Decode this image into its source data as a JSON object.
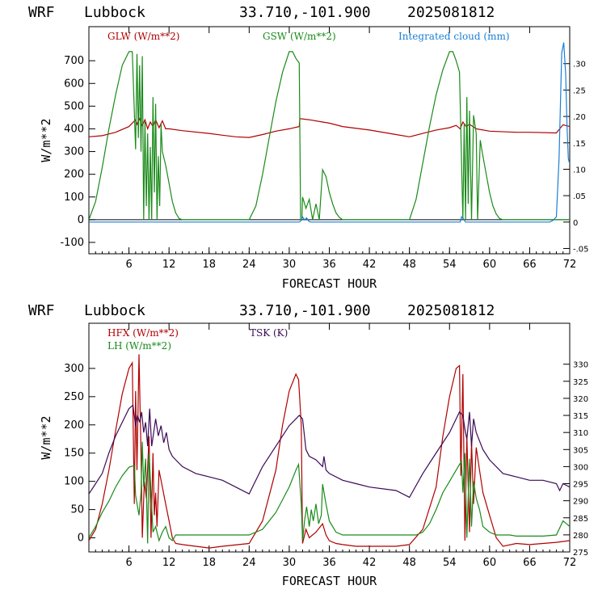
{
  "chart_data": [
    {
      "type": "line",
      "header": {
        "model": "WRF",
        "location": "Lubbock",
        "coords": "33.710,-101.900",
        "run": "2025081812"
      },
      "xlabel": "FORECAST HOUR",
      "ylabel": "W/m**2",
      "xlim": [
        0,
        72
      ],
      "ylim": [
        -150,
        850
      ],
      "y2lim": [
        -0.06,
        0.37
      ],
      "xticks": [
        6,
        12,
        18,
        24,
        30,
        36,
        42,
        48,
        54,
        60,
        66,
        72
      ],
      "yticks": [
        -100,
        0,
        100,
        200,
        300,
        400,
        500,
        600,
        700
      ],
      "y2ticks": [
        -0.05,
        0,
        0.05,
        0.1,
        0.15,
        0.2,
        0.25,
        0.3
      ],
      "y2ticklabels": [
        "-.05",
        "0",
        ".05",
        ".10",
        ".15",
        ".20",
        ".25",
        ".30"
      ],
      "zero_line": true,
      "series": [
        {
          "name": "GLW (W/m**2)",
          "color": "#b00000",
          "axis": "left",
          "x": [
            0,
            2,
            4,
            6,
            7,
            7.2,
            7.6,
            8,
            8.4,
            8.8,
            9.2,
            9.6,
            10,
            10.5,
            11,
            11.5,
            12,
            14,
            18,
            20,
            22,
            24,
            26,
            28,
            30,
            31.5,
            31.6,
            33,
            35,
            36,
            38,
            42,
            46,
            48,
            50,
            52,
            54,
            55,
            55.6,
            56,
            56.5,
            57,
            58,
            60,
            64,
            66,
            70,
            71,
            72
          ],
          "y": [
            365,
            370,
            385,
            410,
            440,
            420,
            445,
            415,
            440,
            400,
            430,
            410,
            440,
            405,
            435,
            400,
            400,
            392,
            380,
            372,
            365,
            362,
            375,
            390,
            400,
            410,
            445,
            440,
            430,
            425,
            410,
            395,
            375,
            365,
            380,
            395,
            405,
            415,
            400,
            430,
            410,
            420,
            400,
            390,
            385,
            385,
            382,
            418,
            410
          ]
        },
        {
          "name": "GSW (W/m**2)",
          "color": "#1a8a1a",
          "axis": "left",
          "x": [
            0,
            1,
            2,
            3,
            4,
            5,
            6,
            6.5,
            7,
            7.2,
            7.4,
            7.6,
            7.8,
            8,
            8.2,
            8.4,
            8.6,
            8.8,
            9,
            9.2,
            9.4,
            9.6,
            9.8,
            10,
            10.2,
            10.4,
            10.6,
            10.8,
            11,
            11.5,
            12,
            12.5,
            13,
            13.5,
            14,
            24,
            25,
            26,
            27,
            28,
            29,
            30,
            30.5,
            31,
            31.5,
            31.7,
            31.9,
            32,
            32.5,
            33,
            33.5,
            34,
            34.5,
            35,
            35.5,
            36,
            36.5,
            37,
            37.5,
            38,
            48,
            49,
            50,
            51,
            52,
            53,
            54,
            54.5,
            55,
            55.5,
            56,
            56.2,
            56.4,
            56.6,
            56.8,
            57,
            57.3,
            57.6,
            58,
            58.2,
            58.6,
            59,
            59.5,
            60,
            60.5,
            61,
            61.5,
            62,
            72
          ],
          "y": [
            0,
            80,
            230,
            400,
            550,
            680,
            740,
            740,
            310,
            730,
            360,
            680,
            300,
            720,
            0,
            430,
            60,
            380,
            0,
            320,
            0,
            540,
            120,
            510,
            0,
            280,
            60,
            420,
            300,
            240,
            160,
            80,
            30,
            5,
            0,
            0,
            60,
            200,
            360,
            520,
            650,
            740,
            740,
            710,
            690,
            0,
            0,
            100,
            50,
            90,
            0,
            70,
            0,
            220,
            190,
            120,
            70,
            30,
            10,
            0,
            0,
            90,
            250,
            410,
            550,
            660,
            740,
            740,
            700,
            650,
            0,
            420,
            0,
            540,
            70,
            480,
            0,
            460,
            380,
            0,
            350,
            280,
            200,
            120,
            60,
            25,
            5,
            0,
            0
          ]
        },
        {
          "name": "Integrated cloud (mm)",
          "color": "#1a7fd6",
          "axis": "right",
          "x": [
            0,
            31.5,
            31.8,
            32,
            32.3,
            32.6,
            32.9,
            33.2,
            34,
            55.6,
            55.8,
            56,
            56.2,
            56.4,
            69,
            69.5,
            70,
            70.4,
            70.8,
            71.1,
            71.4,
            71.6,
            71.8,
            72
          ],
          "y": [
            0,
            0,
            0.003,
            0.01,
            0.004,
            0.008,
            0.002,
            0,
            0,
            0,
            0.01,
            0.008,
            0.004,
            0,
            0,
            0.003,
            0.01,
            0.12,
            0.32,
            0.34,
            0.28,
            0.18,
            0.12,
            0.11
          ]
        }
      ]
    },
    {
      "type": "line",
      "header": {
        "model": "WRF",
        "location": "Lubbock",
        "coords": "33.710,-101.900",
        "run": "2025081812"
      },
      "xlabel": "FORECAST HOUR",
      "ylabel": "W/m**2",
      "xlim": [
        0,
        72
      ],
      "ylim": [
        -25,
        380
      ],
      "y2lim": [
        275,
        342
      ],
      "xticks": [
        6,
        12,
        18,
        24,
        30,
        36,
        42,
        48,
        54,
        60,
        66,
        72
      ],
      "yticks": [
        0,
        50,
        100,
        150,
        200,
        250,
        300
      ],
      "y2ticks": [
        275,
        280,
        285,
        290,
        295,
        300,
        305,
        310,
        315,
        320,
        325,
        330
      ],
      "y2ticklabels": [
        "275",
        "280",
        "285",
        "290",
        "295",
        "300",
        "305",
        "310",
        "315",
        "320",
        "325",
        "330"
      ],
      "zero_line": false,
      "series": [
        {
          "name": "HFX (W/m**2)",
          "color": "#b00000",
          "axis": "left",
          "x": [
            0,
            1,
            2,
            3,
            4,
            5,
            6,
            6.5,
            6.8,
            7,
            7.2,
            7.5,
            7.8,
            8,
            8.3,
            8.6,
            9,
            9.3,
            9.6,
            9.8,
            10,
            10.2,
            10.5,
            11,
            11.5,
            12,
            12.5,
            13,
            14,
            16,
            18,
            20,
            24,
            26,
            28,
            29,
            30,
            31,
            31.4,
            31.8,
            32,
            32.5,
            33,
            34,
            35,
            35.5,
            36,
            37,
            38,
            40,
            46,
            48,
            50,
            52,
            53,
            54,
            55,
            55.5,
            55.7,
            56,
            56.3,
            56.6,
            57,
            57.3,
            57.6,
            58,
            58.5,
            59,
            60,
            61,
            62,
            64,
            66,
            68,
            70,
            72
          ],
          "y": [
            -5,
            15,
            60,
            120,
            190,
            255,
            300,
            310,
            60,
            260,
            120,
            325,
            150,
            0,
            100,
            70,
            180,
            0,
            150,
            40,
            80,
            20,
            120,
            90,
            60,
            30,
            0,
            -10,
            -12,
            -15,
            -18,
            -15,
            -10,
            30,
            120,
            200,
            260,
            290,
            280,
            200,
            -10,
            15,
            0,
            10,
            25,
            5,
            -5,
            -10,
            -12,
            -15,
            -15,
            -12,
            15,
            90,
            180,
            250,
            300,
            305,
            110,
            290,
            -5,
            180,
            10,
            170,
            60,
            160,
            120,
            80,
            40,
            0,
            -15,
            -10,
            -12,
            -10,
            -8,
            -5
          ]
        },
        {
          "name": "LH (W/m**2)",
          "color": "#1a8a1a",
          "axis": "left",
          "x": [
            0,
            1,
            2,
            3,
            4,
            5,
            6,
            6.8,
            7,
            7.5,
            7.8,
            8,
            8.2,
            8.5,
            8.8,
            9,
            9.3,
            9.6,
            10,
            10.5,
            11,
            11.5,
            12,
            12.5,
            13,
            14,
            18,
            24,
            26,
            28,
            30,
            31,
            31.4,
            31.8,
            32,
            32.3,
            32.6,
            33,
            33.3,
            33.6,
            34,
            34.4,
            34.8,
            35,
            35.5,
            36,
            37,
            38,
            48,
            49,
            50,
            51,
            52,
            53,
            54,
            55,
            55.5,
            55.8,
            56,
            56.3,
            56.6,
            57,
            57.3,
            57.6,
            58,
            58.5,
            59,
            60,
            61,
            62,
            63,
            64,
            66,
            68,
            70,
            71,
            71.5,
            72
          ],
          "y": [
            0,
            20,
            45,
            65,
            90,
            110,
            125,
            128,
            75,
            40,
            80,
            170,
            90,
            140,
            -10,
            150,
            80,
            10,
            20,
            -5,
            10,
            20,
            0,
            -5,
            5,
            5,
            5,
            5,
            15,
            45,
            90,
            120,
            130,
            60,
            -5,
            30,
            55,
            20,
            50,
            30,
            60,
            25,
            40,
            95,
            60,
            30,
            10,
            5,
            5,
            5,
            10,
            25,
            50,
            80,
            100,
            120,
            130,
            135,
            80,
            150,
            0,
            140,
            20,
            100,
            70,
            50,
            20,
            10,
            5,
            5,
            5,
            3,
            3,
            3,
            5,
            30,
            25,
            20
          ]
        },
        {
          "name": "TSK (K)",
          "color": "#3a0a55",
          "axis": "right",
          "x": [
            0,
            1,
            2,
            3,
            4,
            5,
            6,
            6.6,
            7,
            7.3,
            7.6,
            7.9,
            8.2,
            8.5,
            8.8,
            9.1,
            9.4,
            9.7,
            10,
            10.4,
            10.8,
            11.2,
            11.6,
            12,
            12.5,
            13,
            14,
            16,
            18,
            20,
            24,
            26,
            28,
            30,
            31,
            31.5,
            32,
            32.5,
            33,
            34,
            35,
            35.2,
            35.5,
            36,
            38,
            40,
            42,
            46,
            48,
            50,
            52,
            54,
            55,
            55.5,
            56,
            56.3,
            56.6,
            57,
            57.3,
            57.6,
            58,
            59,
            60,
            62,
            64,
            66,
            68,
            70,
            70.5,
            71,
            72
          ],
          "y": [
            292,
            295,
            298,
            304,
            309,
            313,
            317,
            318,
            312,
            315,
            313,
            316,
            310,
            313,
            306,
            317,
            306,
            310,
            314,
            309,
            312,
            307,
            310,
            305,
            303,
            302,
            300,
            298,
            297,
            296,
            292,
            300,
            306,
            312,
            314,
            315,
            314,
            305,
            303,
            302,
            300,
            303,
            299,
            298,
            296,
            295,
            294,
            293,
            291,
            298,
            304,
            310,
            314,
            316,
            315,
            311,
            308,
            316,
            306,
            314,
            310,
            305,
            302,
            298,
            297,
            296,
            296,
            295,
            293,
            295,
            294
          ]
        }
      ]
    }
  ]
}
